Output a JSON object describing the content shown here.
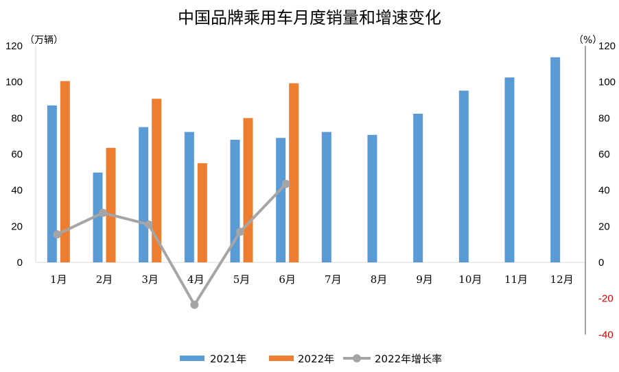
{
  "chart_data": {
    "type": "bar",
    "title": "中国品牌乘用车月度销量和增速变化",
    "y_left_unit": "（万辆）",
    "y_right_unit": "（%）",
    "categories": [
      "1月",
      "2月",
      "3月",
      "4月",
      "5月",
      "6月",
      "7月",
      "8月",
      "9月",
      "10月",
      "11月",
      "12月"
    ],
    "y_left_ticks": [
      "0",
      "20",
      "40",
      "60",
      "80",
      "100",
      "120"
    ],
    "y_right_ticks": [
      "-40",
      "-20",
      "0",
      "20",
      "40",
      "60",
      "80",
      "100",
      "120"
    ],
    "y_left_range": [
      0,
      120
    ],
    "y_right_range": [
      -40,
      120
    ],
    "series": [
      {
        "name": "2021年",
        "type": "bar",
        "axis": "left",
        "color": "#5b9bd5",
        "values": [
          87,
          49.8,
          75,
          72.3,
          68,
          69,
          72.3,
          70.7,
          82.4,
          95.2,
          102.5,
          113.7
        ]
      },
      {
        "name": "2022年",
        "type": "bar",
        "axis": "left",
        "color": "#ed7d31",
        "values": [
          100.5,
          63.5,
          90.7,
          55,
          80,
          99.3,
          null,
          null,
          null,
          null,
          null,
          null
        ]
      },
      {
        "name": "2022年增长率",
        "type": "line",
        "axis": "right",
        "color": "#a5a5a5",
        "values": [
          15.5,
          27.5,
          21,
          -23.5,
          17,
          43.5,
          null,
          null,
          null,
          null,
          null,
          null
        ]
      }
    ],
    "legend_position": "bottom",
    "grid": false
  }
}
